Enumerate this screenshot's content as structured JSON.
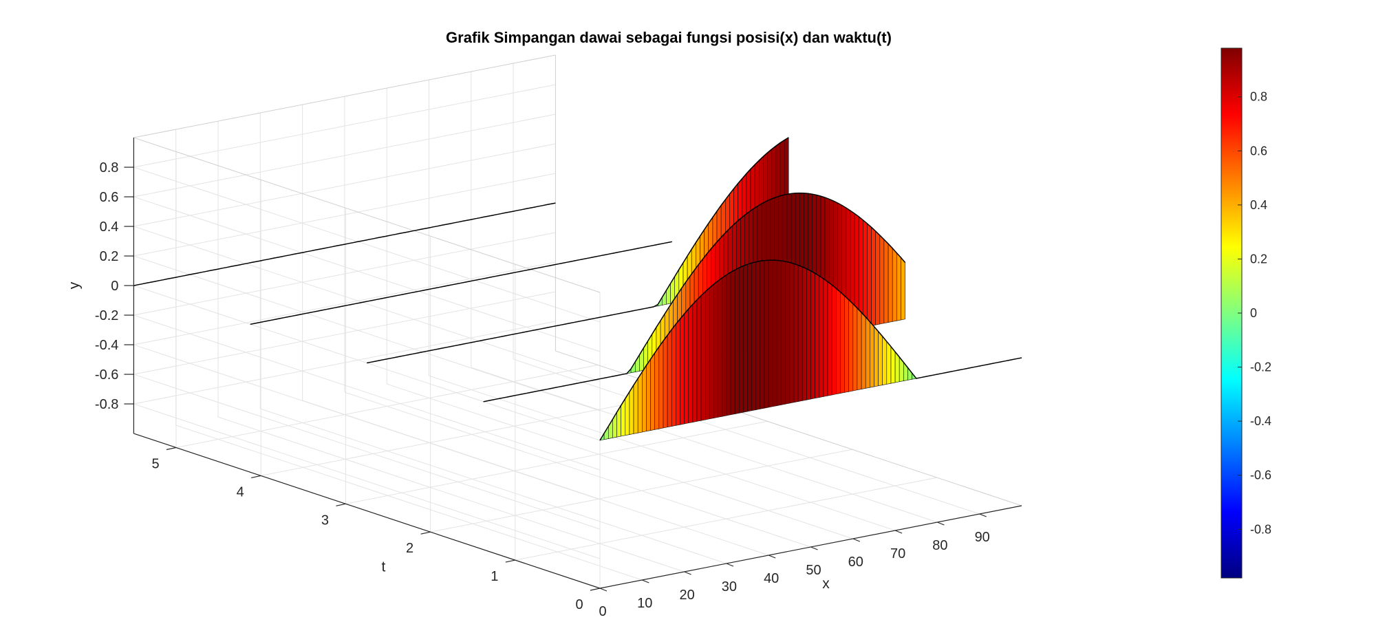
{
  "chart_data": {
    "type": "surface3d",
    "title": "Grafik Simpangan dawai sebagai fungsi posisi(x) dan waktu(t)",
    "xlabel": "x",
    "ylabel": "t",
    "zlabel": "y",
    "xlim": [
      0,
      100
    ],
    "tlim": [
      0,
      5.5
    ],
    "zlim": [
      -1,
      1
    ],
    "x_ticks": [
      0,
      10,
      20,
      30,
      40,
      50,
      60,
      70,
      80,
      90
    ],
    "x_tick_labels": [
      "0",
      "10",
      "20",
      "30",
      "40",
      "50",
      "60",
      "70",
      "80",
      "90"
    ],
    "t_ticks": [
      0,
      1,
      2,
      3,
      4,
      5
    ],
    "t_tick_labels": [
      "0",
      "1",
      "2",
      "3",
      "4",
      "5"
    ],
    "z_ticks": [
      -0.8,
      -0.6,
      -0.4,
      -0.2,
      0,
      0.2,
      0.4,
      0.6,
      0.8
    ],
    "z_tick_labels": [
      "-0.8",
      "-0.6",
      "-0.4",
      "-0.2",
      "0",
      "0.2",
      "0.4",
      "0.6",
      "0.8"
    ],
    "grid": true,
    "colormap": "jet",
    "colorbar": {
      "range": [
        -0.98,
        0.98
      ],
      "ticks": [
        -0.8,
        -0.6,
        -0.4,
        -0.2,
        0,
        0.2,
        0.4,
        0.6,
        0.8
      ],
      "tick_labels": [
        "-0.8",
        "-0.6",
        "-0.4",
        "-0.2",
        "0",
        "0.2",
        "0.4",
        "0.6",
        "0.8"
      ]
    },
    "surface": {
      "x_range": [
        0,
        100
      ],
      "x_samples": 101,
      "t_samples": [
        0,
        1.375,
        2.75,
        4.125,
        5.5
      ],
      "description_of_values": "y(x,t) is a rectangular-window sine wave: y = sin(pi*(x - 25*t)/75) for 0 <= x - 25*t <= 75, else 0; the shape is truncated at x = 100",
      "wave_half_width": 75,
      "wave_speed_per_t": 25
    }
  }
}
